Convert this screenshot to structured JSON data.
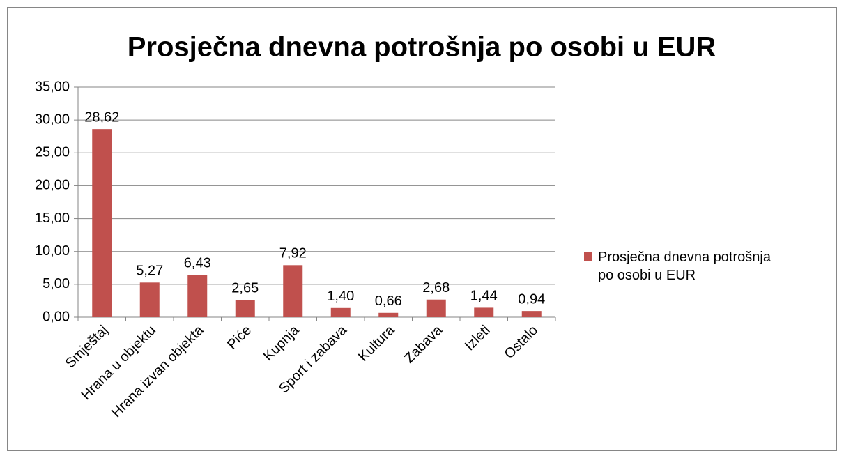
{
  "chart_data": {
    "type": "bar",
    "title": "Prosječna dnevna potrošnja po osobi u EUR",
    "categories": [
      "Smještaj",
      "Hrana u objektu",
      "Hrana izvan objekta",
      "Piće",
      "Kupnja",
      "Sport i zabava",
      "Kultura",
      "Zabava",
      "Izleti",
      "Ostalo"
    ],
    "series": [
      {
        "name": "Prosječna dnevna potrošnja po osobi u EUR",
        "color": "#c0504d",
        "values": [
          28.62,
          5.27,
          6.43,
          2.65,
          7.92,
          1.4,
          0.66,
          2.68,
          1.44,
          0.94
        ],
        "value_labels": [
          "28,62",
          "5,27",
          "6,43",
          "2,65",
          "7,92",
          "1,40",
          "0,66",
          "2,68",
          "1,44",
          "0,94"
        ]
      }
    ],
    "ylim": [
      0,
      35
    ],
    "yticks": [
      {
        "value": 0,
        "label": "0,00"
      },
      {
        "value": 5,
        "label": "5,00"
      },
      {
        "value": 10,
        "label": "10,00"
      },
      {
        "value": 15,
        "label": "15,00"
      },
      {
        "value": 20,
        "label": "20,00"
      },
      {
        "value": 25,
        "label": "25,00"
      },
      {
        "value": 30,
        "label": "30,00"
      },
      {
        "value": 35,
        "label": "35,00"
      }
    ],
    "grid": true,
    "legend": "right"
  }
}
